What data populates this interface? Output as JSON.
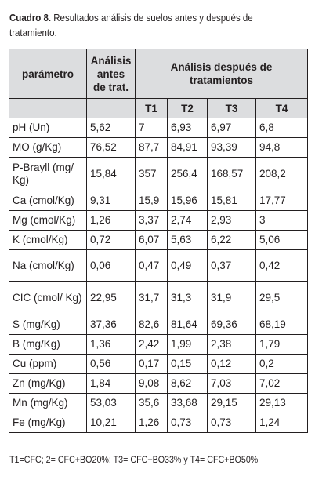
{
  "caption": {
    "label": "Cuadro 8.",
    "text": " Resultados análisis de suelos antes y después de tratamiento."
  },
  "table": {
    "header": {
      "param": "parámetro",
      "antes": "Análisis antes de trat.",
      "despues": "Análisis después de tratamientos",
      "treatments": [
        "T1",
        "T2",
        "T3",
        "T4"
      ]
    },
    "rows": [
      {
        "param": "pH (Un)",
        "antes": "5,62",
        "t1": "7",
        "t2": "6,93",
        "t3": "6,97",
        "t4": "6,8"
      },
      {
        "param": "MO (g/Kg)",
        "antes": "76,52",
        "t1": "87,7",
        "t2": "84,91",
        "t3": "93,39",
        "t4": "94,8"
      },
      {
        "param": "P-Brayll (mg/ Kg)",
        "antes": "15,84",
        "t1": "357",
        "t2": "256,4",
        "t3": "168,57",
        "t4": "208,2"
      },
      {
        "param": "Ca (cmol/Kg)",
        "antes": "9,31",
        "t1": "15,9",
        "t2": "15,96",
        "t3": "15,81",
        "t4": "17,77"
      },
      {
        "param": "Mg (cmol/Kg)",
        "antes": "1,26",
        "t1": "3,37",
        "t2": "2,74",
        "t3": "2,93",
        "t4": "3"
      },
      {
        "param": "K (cmol/Kg)",
        "antes": "0,72",
        "t1": "6,07",
        "t2": "5,63",
        "t3": "6,22",
        "t4": "5,06"
      },
      {
        "param": "Na (cmol/Kg)",
        "antes": "0,06",
        "t1": "0,47",
        "t2": "0,49",
        "t3": "0,37",
        "t4": "0,42"
      },
      {
        "param": "CIC (cmol/ Kg)",
        "antes": "22,95",
        "t1": "31,7",
        "t2": "31,3",
        "t3": "31,9",
        "t4": "29,5"
      },
      {
        "param": "S (mg/Kg)",
        "antes": "37,36",
        "t1": "82,6",
        "t2": "81,64",
        "t3": "69,36",
        "t4": "68,19"
      },
      {
        "param": "B (mg/Kg)",
        "antes": "1,36",
        "t1": "2,42",
        "t2": "1,99",
        "t3": "2,38",
        "t4": "1,79"
      },
      {
        "param": "Cu (ppm)",
        "antes": "0,56",
        "t1": "0,17",
        "t2": "0,15",
        "t3": "0,12",
        "t4": "0,2"
      },
      {
        "param": "Zn (mg/Kg)",
        "antes": "1,84",
        "t1": "9,08",
        "t2": "8,62",
        "t3": "7,03",
        "t4": "7,02"
      },
      {
        "param": "Mn (mg/Kg)",
        "antes": "53,03",
        "t1": "35,6",
        "t2": "33,68",
        "t3": "29,15",
        "t4": "29,13"
      },
      {
        "param": "Fe (mg/Kg)",
        "antes": "10,21",
        "t1": "1,26",
        "t2": "0,73",
        "t3": "0,73",
        "t4": "1,24"
      }
    ]
  },
  "footnote": "T1=CFC; 2= CFC+BO20%; T3= CFC+BO33% y T4= CFC+BO50%"
}
